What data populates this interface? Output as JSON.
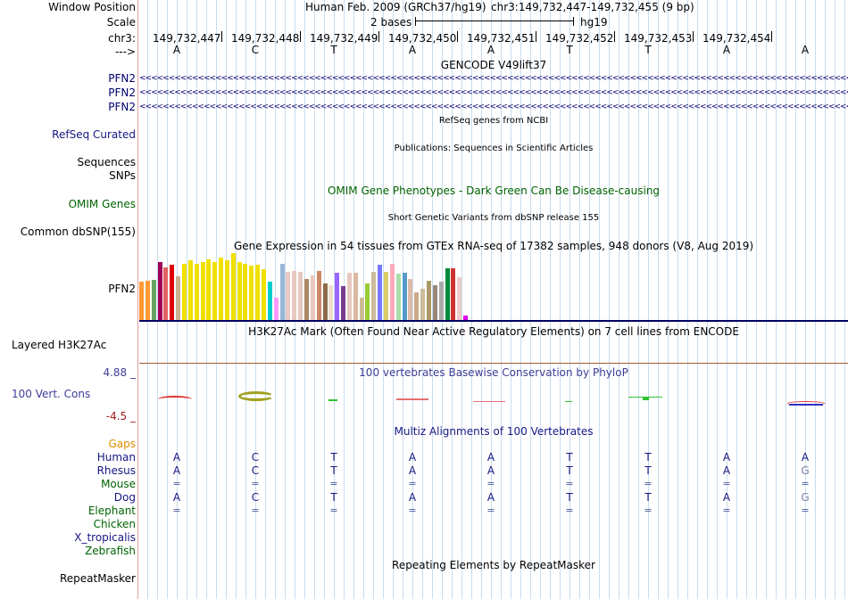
{
  "header": {
    "window_position_label": "Window Position",
    "scale_label": "Scale",
    "chrom_label": "chr3:",
    "strand_label": "--->",
    "assembly_text": "Human Feb. 2009 (GRCh37/hg19)",
    "position_text": "chr3:149,732,447-149,732,455 (9 bp)",
    "scale_text": "2 bases",
    "db_text": "hg19"
  },
  "ruler": {
    "coords": [
      "149,732,447",
      "149,732,448",
      "149,732,449",
      "149,732,450",
      "149,732,451",
      "149,732,452",
      "149,732,453",
      "149,732,454"
    ],
    "bases": [
      "A",
      "C",
      "T",
      "A",
      "A",
      "T",
      "T",
      "A",
      "A"
    ]
  },
  "gencode": {
    "title": "GENCODE V49lift37",
    "genes": [
      "PFN2",
      "PFN2",
      "PFN2"
    ],
    "arrows": "<<<<<<<<<<<<<<<<<<<<<<<<<<<<<<<<<<<<<<<<<<<<<<<<<<<<<<<<<<<<<<<<<<<<<<<<<<<<<<<<<<<<<<<<<<<<<<<<<<<<<<<<<<<<<<<<<<<<<<<<<<<<<<<<<<<<<<<<<<<<<<<<<<<<<<<<<<<<<<<<<<<<<<<<<"
  },
  "refseq": {
    "title": "RefSeq genes from NCBI",
    "label": "RefSeq Curated"
  },
  "pubs": {
    "title": "Publications: Sequences in Scientific Articles",
    "label1": "Sequences",
    "label2": "SNPs"
  },
  "omim": {
    "title": "OMIM Gene Phenotypes - Dark Green Can Be Disease-causing",
    "label": "OMIM Genes"
  },
  "dbsnp": {
    "title": "Short Genetic Variants from dbSNP release 155",
    "label": "Common dbSNP(155)"
  },
  "gtex": {
    "title": "Gene Expression in 54 tissues from GTEx RNA-seq of 17382 samples, 948 donors (V8, Aug 2019)",
    "label": "PFN2",
    "chart_data": {
      "type": "bar",
      "max": 74,
      "values": [
        42,
        43,
        44,
        64,
        58,
        61,
        48,
        62,
        66,
        62,
        64,
        67,
        64,
        69,
        66,
        74,
        64,
        62,
        60,
        61,
        56,
        42,
        25,
        62,
        53,
        54,
        53,
        45,
        49,
        54,
        40,
        38,
        52,
        37,
        52,
        52,
        25,
        40,
        53,
        61,
        53,
        62,
        51,
        52,
        45,
        31,
        35,
        43,
        38,
        42,
        57,
        57,
        47,
        5
      ],
      "colors": [
        "#ff9933",
        "#ff9933",
        "#66a366",
        "#a0005a",
        "#e06060",
        "#e00000",
        "#c8b090",
        "#f0e000",
        "#f0e000",
        "#f0e000",
        "#f0e000",
        "#f0e000",
        "#f0e000",
        "#f0e000",
        "#f0e000",
        "#f0e000",
        "#f0e000",
        "#f0e000",
        "#f0e000",
        "#f0e000",
        "#f0e000",
        "#00cccc",
        "#ff99ff",
        "#99b8d8",
        "#e8c8c0",
        "#e8c8c0",
        "#e8c8c0",
        "#aa8866",
        "#e8c8c0",
        "#cc8866",
        "#8c6a48",
        "#eeddcc",
        "#9966ff",
        "#7a3d8e",
        "#e8c8c0",
        "#d8b8a0",
        "#ccbb99",
        "#99cc33",
        "#ccbb99",
        "#7777ff",
        "#ddcc66",
        "#ffaabb",
        "#aaddaa",
        "#5599cc",
        "#ddbbaa",
        "#ccaa88",
        "#ccbb99",
        "#aa9966",
        "#998877",
        "#aaaaaa",
        "#008a3a",
        "#cc3333",
        "#eecccc",
        "#dd00ee"
      ]
    }
  },
  "h3k27ac": {
    "title": "H3K27Ac Mark (Often Found Near Active Regulatory Elements) on 7 cell lines from ENCODE",
    "label": "Layered H3K27Ac"
  },
  "phylop": {
    "title": "100 vertebrates Basewise Conservation by PhyloP",
    "label": "100 Vert. Cons",
    "max_label": "4.88 _",
    "min_label": "-4.5 _"
  },
  "multiz": {
    "title": "Multiz Alignments of 100 Vertebrates",
    "gaps_label": "Gaps",
    "rows": [
      {
        "species": "Human",
        "seq": [
          "A",
          "C",
          "T",
          "A",
          "A",
          "T",
          "T",
          "A",
          "A"
        ]
      },
      {
        "species": "Rhesus",
        "seq": [
          "A",
          "C",
          "T",
          "A",
          "A",
          "T",
          "T",
          "A",
          "G"
        ]
      },
      {
        "species": "Mouse",
        "seq": [
          "=",
          "=",
          "=",
          "=",
          "=",
          "=",
          "=",
          "=",
          "="
        ]
      },
      {
        "species": "Dog",
        "seq": [
          "A",
          "C",
          "T",
          "A",
          "A",
          "T",
          "T",
          "A",
          "G"
        ]
      },
      {
        "species": "Elephant",
        "seq": [
          "=",
          "=",
          "=",
          "=",
          "=",
          "=",
          "=",
          "=",
          "="
        ]
      },
      {
        "species": "Chicken",
        "seq": []
      },
      {
        "species": "X_tropicalis",
        "seq": []
      },
      {
        "species": "Zebrafish",
        "seq": []
      }
    ]
  },
  "rmsk": {
    "title": "Repeating Elements by RepeatMasker",
    "label": "RepeatMasker"
  }
}
